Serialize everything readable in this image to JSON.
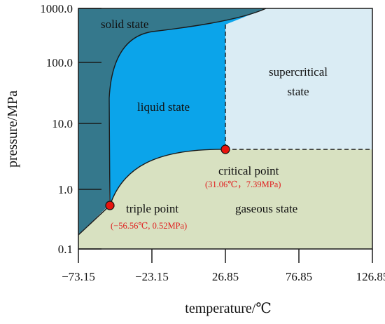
{
  "axes": {
    "xlabel": "temperature/℃",
    "ylabel": "pressure/MPa",
    "x_ticks": [
      "−73.15",
      "−23.15",
      "26.85",
      "76.85",
      "126.85"
    ],
    "y_ticks": [
      "1000.0",
      "100.0",
      "10.0",
      "1.0",
      "0.1"
    ],
    "y_scale": "log"
  },
  "regions": {
    "solid": "solid state",
    "liquid": "liquid state",
    "supercritical_line1": "supercritical",
    "supercritical_line2": "state",
    "gaseous": "gaseous state"
  },
  "points": {
    "triple": {
      "label": "triple point",
      "coords": "(−56.56℃, 0.52MPa)"
    },
    "critical": {
      "label": "critical point",
      "coords": "(31.06℃，7.39MPa)"
    }
  },
  "colors": {
    "solid": "#35788c",
    "liquid": "#0ba4ea",
    "supercritical": "#daecf4",
    "gaseous": "#d8e1c1",
    "marker": "#e8140e",
    "coord_text": "#e02020"
  },
  "chart_data": {
    "type": "phase-diagram",
    "x_range": [
      -73.15,
      126.85
    ],
    "y_range": [
      0.1,
      1000.0
    ],
    "triple_point": {
      "x": -56.56,
      "y": 0.52
    },
    "critical_point": {
      "x": 31.06,
      "y": 7.39
    }
  }
}
